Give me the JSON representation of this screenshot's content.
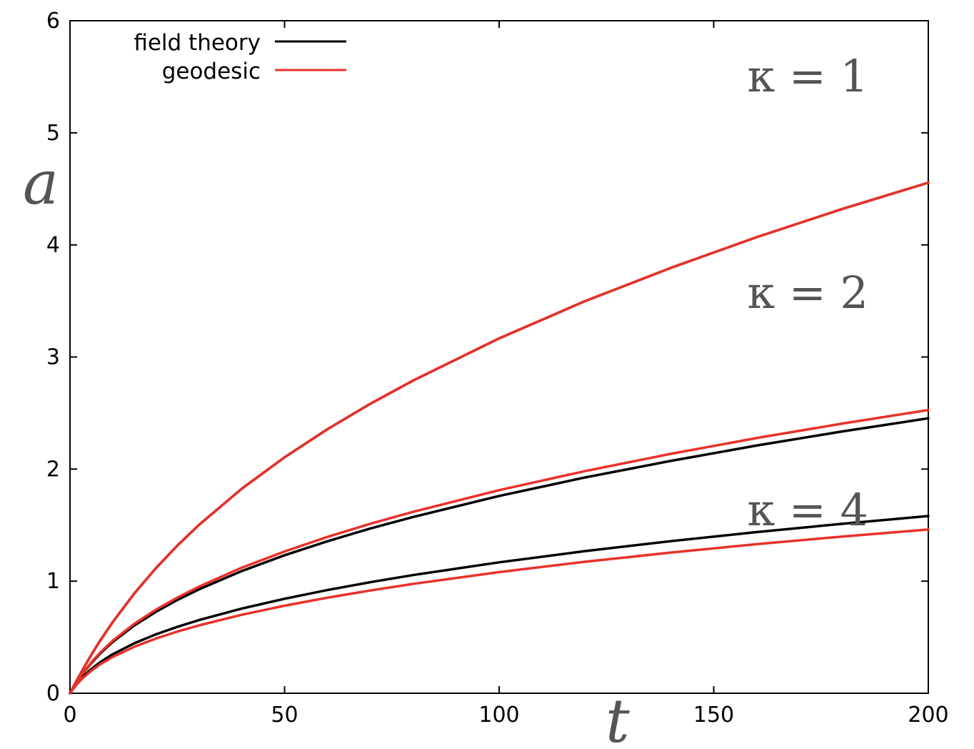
{
  "chart_data": {
    "type": "line",
    "title": "",
    "xlabel": "t",
    "ylabel": "a",
    "xlim": [
      0,
      200
    ],
    "ylim": [
      0,
      6
    ],
    "x_ticks": [
      "0",
      "50",
      "100",
      "150",
      "200"
    ],
    "y_ticks": [
      "0",
      "1",
      "2",
      "3",
      "4",
      "5",
      "6"
    ],
    "grid": false,
    "legend_position": "top-left",
    "legend": [
      {
        "label": "field theory",
        "color": "#000000"
      },
      {
        "label": "geodesic",
        "color": "#e8312a"
      }
    ],
    "annotations": [
      {
        "text": "κ = 1",
        "x": 173,
        "y": 5.55
      },
      {
        "text": "κ = 2",
        "x": 173,
        "y": 3.6
      },
      {
        "text": "κ = 4",
        "x": 173,
        "y": 1.65
      }
    ],
    "x": [
      0,
      1,
      2,
      3,
      5,
      7,
      10,
      15,
      20,
      25,
      30,
      40,
      50,
      60,
      70,
      80,
      100,
      120,
      140,
      160,
      180,
      200
    ],
    "series": [
      {
        "name": "field theory",
        "kappa": "κ = 1",
        "color": "#000000",
        "values": [
          0,
          0.073,
          0.144,
          0.213,
          0.345,
          0.468,
          0.637,
          0.891,
          1.115,
          1.317,
          1.5,
          1.824,
          2.105,
          2.356,
          2.583,
          2.791,
          3.166,
          3.498,
          3.795,
          4.069,
          4.321,
          4.555
        ]
      },
      {
        "name": "geodesic",
        "kappa": "κ = 1",
        "color": "#e8312a",
        "values": [
          0,
          0.073,
          0.144,
          0.213,
          0.345,
          0.468,
          0.637,
          0.891,
          1.115,
          1.317,
          1.5,
          1.824,
          2.105,
          2.356,
          2.583,
          2.791,
          3.166,
          3.498,
          3.795,
          4.069,
          4.321,
          4.555
        ]
      },
      {
        "name": "field theory",
        "kappa": "κ = 2",
        "color": "#000000",
        "values": [
          0,
          0.064,
          0.122,
          0.176,
          0.27,
          0.353,
          0.459,
          0.605,
          0.726,
          0.832,
          0.926,
          1.09,
          1.231,
          1.356,
          1.47,
          1.573,
          1.76,
          1.925,
          2.073,
          2.21,
          2.336,
          2.453
        ]
      },
      {
        "name": "geodesic",
        "kappa": "κ = 2",
        "color": "#e8312a",
        "values": [
          0,
          0.065,
          0.124,
          0.179,
          0.276,
          0.361,
          0.47,
          0.62,
          0.745,
          0.853,
          0.95,
          1.12,
          1.265,
          1.395,
          1.512,
          1.619,
          1.812,
          1.982,
          2.136,
          2.277,
          2.406,
          2.527
        ]
      },
      {
        "name": "field theory",
        "kappa": "κ = 4",
        "color": "#000000",
        "values": [
          0,
          0.056,
          0.104,
          0.146,
          0.217,
          0.276,
          0.349,
          0.446,
          0.525,
          0.592,
          0.652,
          0.755,
          0.843,
          0.921,
          0.991,
          1.055,
          1.168,
          1.268,
          1.357,
          1.438,
          1.512,
          1.581
        ]
      },
      {
        "name": "geodesic",
        "kappa": "κ = 4",
        "color": "#e8312a",
        "values": [
          0,
          0.052,
          0.097,
          0.136,
          0.202,
          0.257,
          0.325,
          0.415,
          0.488,
          0.55,
          0.605,
          0.7,
          0.781,
          0.853,
          0.917,
          0.976,
          1.081,
          1.173,
          1.255,
          1.33,
          1.398,
          1.461
        ]
      }
    ]
  }
}
